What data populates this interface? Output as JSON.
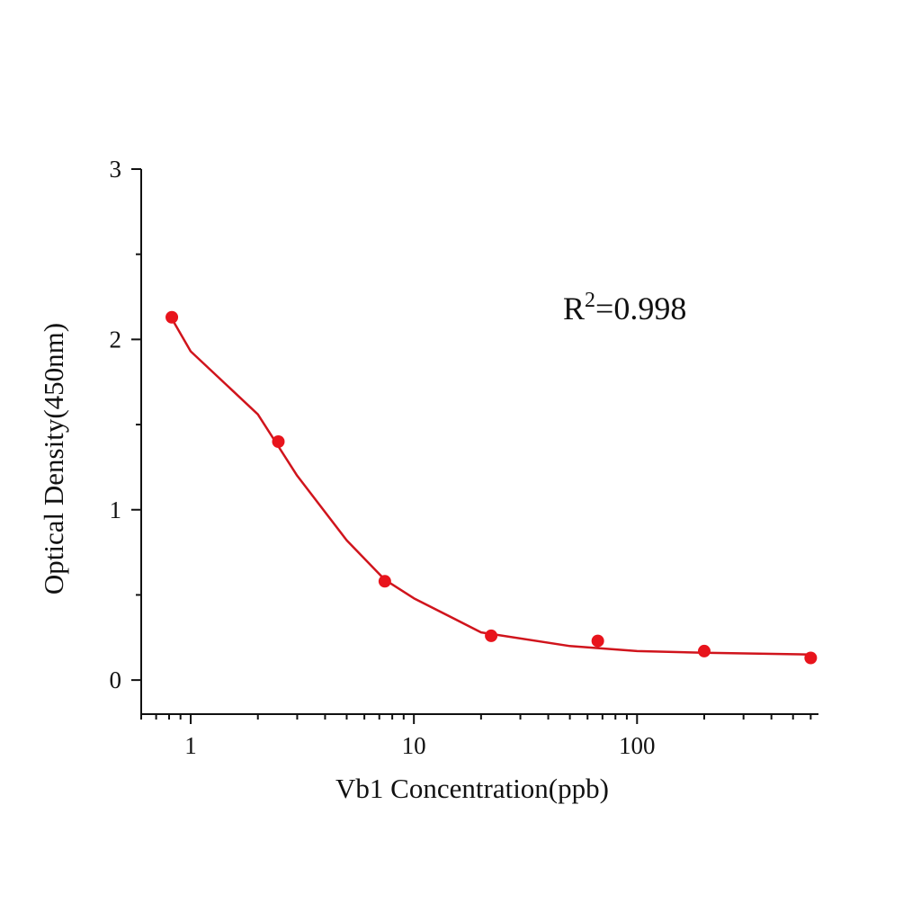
{
  "chart_data": {
    "type": "scatter",
    "x_label": "Vb1  Concentration(ppb)",
    "y_label": "Optical Density(450nm)",
    "annotation": {
      "parts": [
        "R",
        "2",
        "=0.998"
      ]
    },
    "xscale": "log",
    "xlim": [
      0.6,
      650
    ],
    "ylim": [
      -0.2,
      3
    ],
    "xticks": [
      1,
      10,
      100
    ],
    "xminor": [
      0.6,
      0.7,
      0.8,
      0.9,
      2,
      3,
      4,
      5,
      6,
      7,
      8,
      9,
      20,
      30,
      40,
      50,
      60,
      70,
      80,
      90,
      200,
      300,
      400,
      500,
      600
    ],
    "yticks": [
      0,
      1,
      2,
      3
    ],
    "yminor": [
      0.5,
      1.5,
      2.5
    ],
    "series": [
      {
        "type": "scatter",
        "color": "#e8141c",
        "x": [
          0.823,
          2.47,
          7.41,
          22.2,
          66.7,
          200,
          600
        ],
        "values": [
          2.13,
          1.4,
          0.58,
          0.26,
          0.23,
          0.17,
          0.13
        ]
      },
      {
        "type": "line",
        "color": "#d0141c",
        "x": [
          0.8,
          1,
          2,
          3,
          5,
          7.4,
          10,
          20,
          50,
          100,
          200,
          600
        ],
        "values": [
          2.15,
          1.93,
          1.56,
          1.2,
          0.82,
          0.59,
          0.48,
          0.28,
          0.2,
          0.17,
          0.16,
          0.15
        ]
      }
    ]
  }
}
